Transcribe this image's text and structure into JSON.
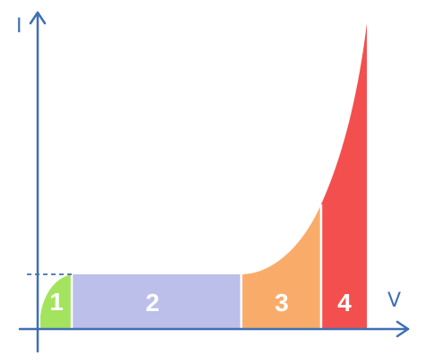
{
  "axes": {
    "y_label": "I",
    "x_label": "V"
  },
  "regions": [
    {
      "label": "1",
      "color": "#a4e35e"
    },
    {
      "label": "2",
      "color": "#bcbfea"
    },
    {
      "label": "3",
      "color": "#f9ac6a"
    },
    {
      "label": "4",
      "color": "#f44f4f"
    }
  ],
  "colors": {
    "axis": "#3f6fb4"
  }
}
